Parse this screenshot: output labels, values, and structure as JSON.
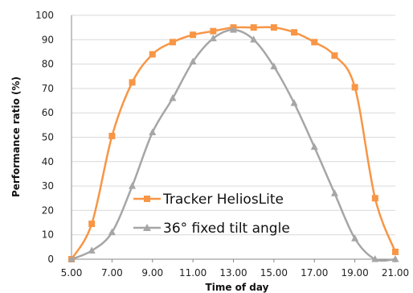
{
  "chart_data": {
    "type": "line",
    "title": "",
    "xlabel": "Time of day",
    "ylabel": "Performance ratio (%)",
    "xlim": [
      5,
      21
    ],
    "ylim": [
      0,
      100
    ],
    "x_ticks": [
      5,
      7,
      9,
      11,
      13,
      15,
      17,
      19,
      21
    ],
    "x_tick_labels": [
      "5.00",
      "7.00",
      "9.00",
      "11.00",
      "13.00",
      "15.00",
      "17.00",
      "19.00",
      "21.00"
    ],
    "y_ticks": [
      0,
      10,
      20,
      30,
      40,
      50,
      60,
      70,
      80,
      90,
      100
    ],
    "y_tick_labels": [
      "0",
      "10",
      "20",
      "30",
      "40",
      "50",
      "60",
      "70",
      "80",
      "90",
      "100"
    ],
    "grid": "horizontal",
    "legend_position": "lower-left",
    "series": [
      {
        "name": "Tracker HeliosLite",
        "color": "#f79646",
        "marker": "square",
        "x": [
          5,
          6,
          7,
          8,
          9,
          10,
          11,
          12,
          13,
          14,
          15,
          16,
          17,
          18,
          19,
          20,
          21
        ],
        "y": [
          0,
          14.5,
          50.5,
          72.5,
          84,
          89,
          92,
          93.5,
          95,
          95,
          95,
          93,
          89,
          83.5,
          70.5,
          25,
          3
        ]
      },
      {
        "name": "36° fixed tilt angle",
        "color": "#a6a6a6",
        "marker": "triangle",
        "x": [
          5,
          6,
          7,
          8,
          9,
          10,
          11,
          12,
          13,
          14,
          15,
          16,
          17,
          18,
          19,
          20,
          21
        ],
        "y": [
          0,
          3.5,
          11,
          30,
          52,
          66,
          81,
          90.5,
          94,
          90,
          79,
          64,
          46,
          27,
          8.5,
          0,
          0
        ]
      }
    ]
  }
}
